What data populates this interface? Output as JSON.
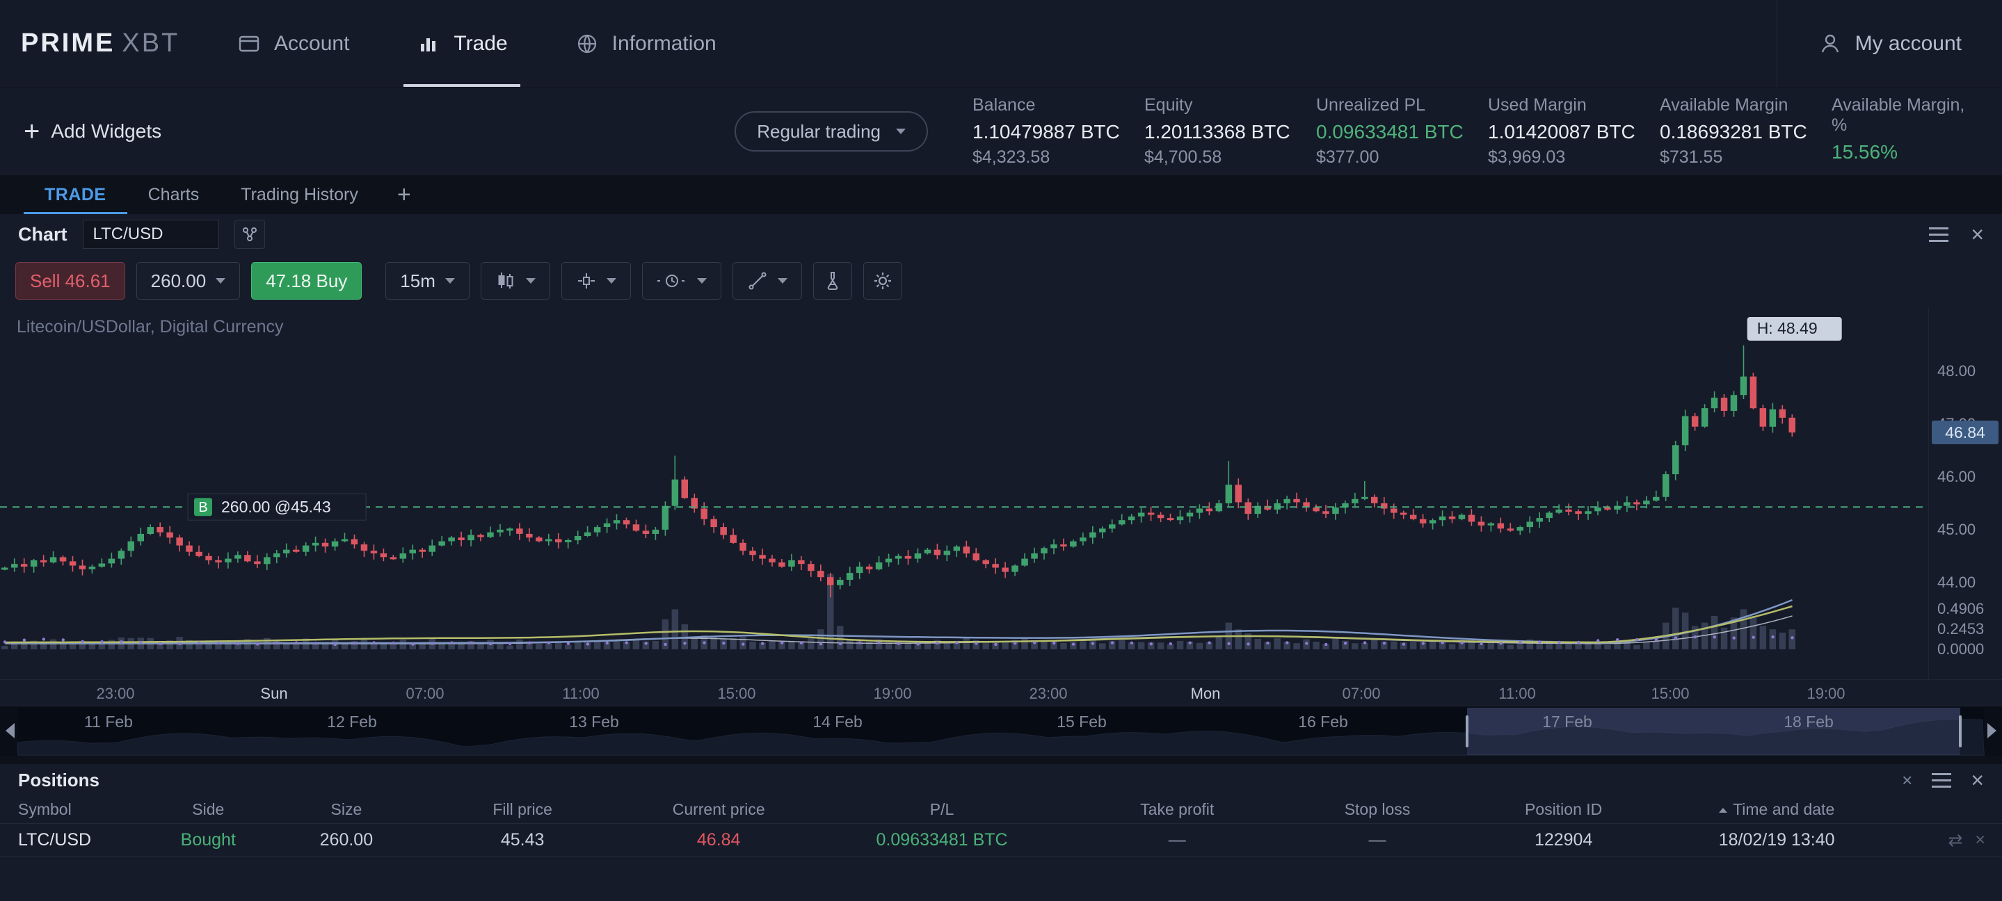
{
  "brand": {
    "prime": "PRIME",
    "xbt": "XBT"
  },
  "nav": {
    "tabs": [
      {
        "label": "Account"
      },
      {
        "label": "Trade",
        "active": true
      },
      {
        "label": "Information"
      }
    ],
    "my_account": "My account"
  },
  "widgets_bar": {
    "add_label": "Add Widgets",
    "plus": "+",
    "mode_select": "Regular trading",
    "stats": [
      {
        "label": "Balance",
        "btc": "1.10479887 BTC",
        "usd": "$4,323.58"
      },
      {
        "label": "Equity",
        "btc": "1.20113368 BTC",
        "usd": "$4,700.58"
      },
      {
        "label": "Unrealized PL",
        "btc": "0.09633481 BTC",
        "usd": "$377.00"
      },
      {
        "label": "Used Margin",
        "btc": "1.01420087 BTC",
        "usd": "$3,969.03"
      },
      {
        "label": "Available Margin",
        "btc": "0.18693281 BTC",
        "usd": "$731.55"
      },
      {
        "label": "Available Margin, %",
        "btc": "15.56%",
        "usd": ""
      }
    ]
  },
  "workspace_tabs": [
    {
      "label": "TRADE",
      "active": true
    },
    {
      "label": "Charts"
    },
    {
      "label": "Trading History"
    },
    {
      "label": "+"
    }
  ],
  "chart_widget": {
    "title": "Chart",
    "symbol": "LTC/USD",
    "watermark": "Litecoin/USDollar, Digital Currency",
    "toolbar": {
      "sell_label": "Sell 46.61",
      "size_value": "260.00",
      "buy_label": "47.18 Buy",
      "interval": "15m"
    },
    "position_tag": {
      "marker": "B",
      "text": "260.00 @45.43",
      "price": 45.43
    },
    "high_tag": {
      "text": "H: 48.49",
      "price": 48.49
    },
    "current_price": "46.84"
  },
  "chart_data": {
    "type": "candlestick",
    "symbol": "LTC/USD",
    "interval": "15m",
    "ylim": [
      43.55,
      48.75
    ],
    "start_price": 44.25,
    "position_line": 45.43,
    "last_price": 46.84,
    "high": 48.49,
    "closes": [
      44.28,
      44.35,
      44.3,
      44.42,
      44.38,
      44.48,
      44.4,
      44.32,
      44.25,
      44.3,
      44.36,
      44.45,
      44.6,
      44.78,
      44.92,
      45.05,
      44.95,
      44.85,
      44.7,
      44.58,
      44.5,
      44.42,
      44.38,
      44.45,
      44.52,
      44.4,
      44.35,
      44.48,
      44.55,
      44.62,
      44.58,
      44.7,
      44.75,
      44.68,
      44.78,
      44.82,
      44.72,
      44.6,
      44.55,
      44.48,
      44.45,
      44.55,
      44.62,
      44.58,
      44.7,
      44.78,
      44.85,
      44.8,
      44.9,
      44.86,
      44.95,
      45.0,
      45.02,
      44.92,
      44.85,
      44.78,
      44.82,
      44.76,
      44.8,
      44.88,
      44.95,
      45.05,
      45.12,
      45.18,
      45.1,
      44.98,
      44.92,
      45.0,
      45.45,
      45.95,
      45.6,
      45.4,
      45.2,
      45.05,
      44.9,
      44.75,
      44.6,
      44.52,
      44.45,
      44.38,
      44.3,
      44.42,
      44.35,
      44.22,
      44.1,
      43.95,
      44.05,
      44.18,
      44.3,
      44.25,
      44.38,
      44.45,
      44.5,
      44.45,
      44.55,
      44.62,
      44.52,
      44.6,
      44.68,
      44.55,
      44.42,
      44.35,
      44.28,
      44.2,
      44.32,
      44.45,
      44.55,
      44.65,
      44.72,
      44.68,
      44.78,
      44.85,
      44.95,
      45.02,
      45.1,
      45.18,
      45.25,
      45.32,
      45.28,
      45.22,
      45.18,
      45.25,
      45.32,
      45.4,
      45.35,
      45.5,
      45.85,
      45.52,
      45.3,
      45.45,
      45.38,
      45.5,
      45.58,
      45.52,
      45.42,
      45.35,
      45.3,
      45.42,
      45.5,
      45.58,
      45.62,
      45.5,
      45.4,
      45.32,
      45.28,
      45.2,
      45.12,
      45.18,
      45.25,
      45.2,
      45.28,
      45.15,
      45.08,
      45.12,
      45.02,
      44.98,
      45.05,
      45.15,
      45.22,
      45.32,
      45.38,
      45.35,
      45.3,
      45.35,
      45.42,
      45.38,
      45.45,
      45.52,
      45.48,
      45.55,
      45.62,
      46.05,
      46.6,
      47.15,
      46.95,
      47.3,
      47.5,
      47.25,
      47.55,
      47.9,
      47.3,
      46.95,
      47.28,
      47.12,
      46.84
    ],
    "wick_overrides": {
      "69": {
        "high": 46.4
      },
      "85": {
        "low": 43.72
      },
      "126": {
        "high": 46.3
      },
      "140": {
        "high": 45.92
      },
      "179": {
        "high": 48.49
      }
    },
    "volume_spikes": {
      "68": 0.18,
      "69": 0.24,
      "70": 0.15,
      "84": 0.12,
      "85": 0.45,
      "86": 0.14,
      "126": 0.16,
      "127": 0.12,
      "171": 0.16,
      "172": 0.25,
      "173": 0.22,
      "174": 0.14,
      "175": 0.16,
      "176": 0.2,
      "177": 0.13,
      "178": 0.19,
      "179": 0.24,
      "180": 0.2,
      "181": 0.14,
      "182": 0.12,
      "183": 0.1,
      "184": 0.12
    },
    "price_axis_labels": [
      "48.00",
      "47.00",
      "46.00",
      "45.00",
      "44.00"
    ],
    "volume_axis_labels": [
      "0.4906",
      "0.2453",
      "0.0000"
    ],
    "time_axis": [
      {
        "label": "23:00",
        "f": 0.06
      },
      {
        "label": "Sun",
        "f": 0.142,
        "day": true
      },
      {
        "label": "07:00",
        "f": 0.2205
      },
      {
        "label": "11:00",
        "f": 0.3013
      },
      {
        "label": "15:00",
        "f": 0.3821
      },
      {
        "label": "19:00",
        "f": 0.4629
      },
      {
        "label": "23:00",
        "f": 0.5437
      },
      {
        "label": "Mon",
        "f": 0.6252,
        "day": true
      },
      {
        "label": "07:00",
        "f": 0.706
      },
      {
        "label": "11:00",
        "f": 0.7868
      },
      {
        "label": "15:00",
        "f": 0.8662
      },
      {
        "label": "19:00",
        "f": 0.947
      }
    ]
  },
  "navigator": {
    "dates": [
      {
        "label": "11 Feb",
        "f": 0.046
      },
      {
        "label": "12 Feb",
        "f": 0.17
      },
      {
        "label": "13 Feb",
        "f": 0.293
      },
      {
        "label": "14 Feb",
        "f": 0.417
      },
      {
        "label": "15 Feb",
        "f": 0.541
      },
      {
        "label": "16 Feb",
        "f": 0.664
      },
      {
        "label": "17 Feb",
        "f": 0.788
      },
      {
        "label": "18 Feb",
        "f": 0.911
      }
    ],
    "selection": [
      0.737,
      0.988
    ]
  },
  "positions": {
    "title": "Positions",
    "columns": [
      "Symbol",
      "Side",
      "Size",
      "Fill price",
      "Current price",
      "P/L",
      "Take profit",
      "Stop loss",
      "Position ID",
      "Time and date"
    ],
    "rows": [
      {
        "symbol": "LTC/USD",
        "side": "Bought",
        "size": "260.00",
        "fill": "45.43",
        "current": "46.84",
        "pl": "0.09633481 BTC",
        "tp": "—",
        "sl": "—",
        "id": "122904",
        "time": "18/02/19 13:40"
      }
    ]
  },
  "colors": {
    "accent_blue": "#4c9be8",
    "green": "#3fa26d",
    "red": "#dc5662",
    "panel": "#161b29",
    "topbar": "#151a28"
  }
}
